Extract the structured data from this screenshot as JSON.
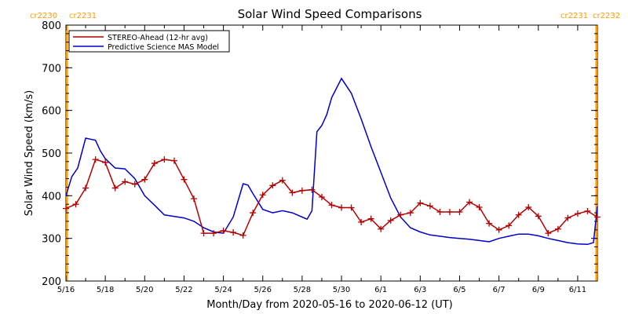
{
  "chart_data": {
    "type": "line",
    "title": "Solar Wind Speed Comparisons",
    "xlabel": "Month/Day from 2020-05-16 to 2020-06-12 (UT)",
    "ylabel": "Solar Wind Speed (km/s)",
    "ylim": [
      200,
      800
    ],
    "xlim": [
      0,
      27
    ],
    "y_ticks": [
      200,
      300,
      400,
      500,
      600,
      700,
      800
    ],
    "x_ticks": [
      {
        "day": 0,
        "label": "5/16"
      },
      {
        "day": 2,
        "label": "5/18"
      },
      {
        "day": 4,
        "label": "5/20"
      },
      {
        "day": 6,
        "label": "5/22"
      },
      {
        "day": 8,
        "label": "5/24"
      },
      {
        "day": 10,
        "label": "5/26"
      },
      {
        "day": 12,
        "label": "5/28"
      },
      {
        "day": 14,
        "label": "5/30"
      },
      {
        "day": 16,
        "label": "6/1"
      },
      {
        "day": 18,
        "label": "6/3"
      },
      {
        "day": 20,
        "label": "6/5"
      },
      {
        "day": 22,
        "label": "6/7"
      },
      {
        "day": 24,
        "label": "6/9"
      },
      {
        "day": 26,
        "label": "6/11"
      }
    ],
    "legend_placement": "top-left",
    "colors": {
      "stereo": "#b30000",
      "model": "#0000cc",
      "rotation": "#ff9900"
    },
    "series": [
      {
        "name": "STEREO-Ahead (12-hr avg)",
        "marker": "plus",
        "x": [
          0,
          0.5,
          1,
          1.5,
          2,
          2.5,
          3,
          3.5,
          4,
          4.5,
          5,
          5.5,
          6,
          6.5,
          7,
          7.5,
          8,
          8.5,
          9,
          9.5,
          10,
          10.5,
          11,
          11.5,
          12,
          12.5,
          13,
          13.5,
          14,
          14.5,
          15,
          15.5,
          16,
          16.5,
          17,
          17.5,
          18,
          18.5,
          19,
          19.5,
          20,
          20.5,
          21,
          21.5,
          22,
          22.5,
          23,
          23.5,
          24,
          24.5,
          25,
          25.5,
          26,
          26.5,
          27
        ],
        "values": [
          370,
          380,
          418,
          485,
          478,
          418,
          433,
          427,
          438,
          476,
          485,
          482,
          438,
          393,
          312,
          312,
          318,
          314,
          307,
          360,
          402,
          424,
          436,
          407,
          412,
          414,
          397,
          378,
          372,
          372,
          338,
          346,
          322,
          342,
          355,
          360,
          383,
          376,
          362,
          362,
          362,
          385,
          373,
          335,
          320,
          330,
          355,
          373,
          352,
          312,
          322,
          348,
          358,
          364,
          350
        ]
      },
      {
        "name": "Predictive Science MAS Model",
        "x": [
          0,
          0.3,
          0.6,
          1,
          1.5,
          1.75,
          2,
          2.5,
          3,
          3.5,
          4,
          4.5,
          5,
          6,
          6.5,
          7,
          7.5,
          8,
          8.5,
          9,
          9.25,
          9.5,
          10,
          10.5,
          11,
          11.5,
          12,
          12.25,
          12.5,
          12.75,
          13,
          13.25,
          13.5,
          14,
          14.5,
          15,
          15.5,
          16,
          16.5,
          17,
          17.5,
          18,
          18.5,
          19,
          19.5,
          20,
          20.5,
          21,
          21.5,
          22,
          22.5,
          23,
          23.5,
          24,
          24.5,
          25,
          25.5,
          26,
          26.5,
          26.8,
          27
        ],
        "values": [
          400,
          445,
          465,
          535,
          530,
          505,
          487,
          465,
          463,
          440,
          400,
          378,
          355,
          348,
          340,
          325,
          315,
          312,
          350,
          428,
          425,
          405,
          368,
          360,
          365,
          360,
          350,
          345,
          365,
          550,
          565,
          590,
          630,
          675,
          640,
          580,
          515,
          455,
          395,
          350,
          325,
          315,
          308,
          305,
          302,
          300,
          298,
          295,
          292,
          300,
          305,
          310,
          310,
          306,
          300,
          295,
          290,
          287,
          286,
          290,
          375
        ]
      }
    ],
    "rotation_markers": {
      "left": {
        "x": 0.05,
        "labels": [
          "cr2230",
          "cr2231"
        ]
      },
      "right": {
        "x": 26.95,
        "labels": [
          "cr2231",
          "cr2232"
        ]
      }
    }
  }
}
